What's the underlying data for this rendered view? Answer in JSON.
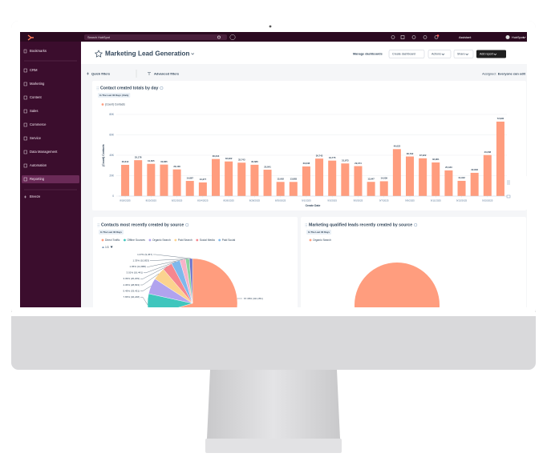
{
  "topbar": {
    "search": "Search HubSpot",
    "assistant": "Assistant",
    "account": "HubSpot"
  },
  "sidebar": {
    "bookmarks": "Bookmarks",
    "items": [
      "CRM",
      "Marketing",
      "Content",
      "Sales",
      "Commerce",
      "Service",
      "Data Management",
      "Automation",
      "Reporting"
    ],
    "active": 8,
    "breeze": "Breeze"
  },
  "header": {
    "title": "Marketing Lead Generation",
    "manage": "Manage dashboards",
    "buttons": [
      "Create dashboard",
      "Actions",
      "Share",
      "Add report"
    ]
  },
  "filters": {
    "quick": "Quick filters",
    "advanced": "Advanced filters",
    "assigned_label": "Assigned:",
    "assigned_value": "Everyone can edit"
  },
  "chart_data": [
    {
      "type": "bar",
      "title": "Contact created totals by day",
      "subtitle": "In The Last 30 Days | Daily",
      "xlabel": "Create Date",
      "ylabel": "(Count) Contacts",
      "categories": [
        "8/18/2025",
        null,
        "8/20/2025",
        null,
        "8/22/2025",
        null,
        "8/24/2025",
        null,
        "8/26/2025",
        null,
        "8/28/2025",
        null,
        "8/30/2025",
        null,
        "9/1/2025",
        null,
        "9/3/2025",
        null,
        "9/5/2025",
        null,
        "9/7/2025",
        null,
        "9/9/2025",
        null,
        "9/11/2025",
        null,
        "9/13/2025",
        null,
        "9/15/2025",
        null
      ],
      "series": [
        {
          "name": "(Count) Contacts",
          "color": "#ff9d7e",
          "values": [
            30612,
            35178,
            31605,
            30865,
            26136,
            14867,
            13377,
            36344,
            33932,
            32743,
            30686,
            25841,
            13902,
            13883,
            29038,
            36743,
            34775,
            31973,
            29374,
            13947,
            14539,
            46022,
            38792,
            37022,
            32961,
            25183,
            14942,
            22803,
            40208,
            72990
          ],
          "value_labels": [
            "30,612",
            "35,178",
            "31,605",
            "30,865",
            "26,136",
            "14,867",
            "13,377",
            "36,344",
            "33,932",
            "32,743",
            "30,686",
            "25,841",
            "13,902",
            "13,883",
            "29,038",
            "36,743",
            "34,775",
            "31,973",
            "29,374",
            "13,947",
            "14,539",
            "46,022",
            "38,792",
            "37,022",
            "32,961",
            "25,183",
            "14,942",
            "22,803",
            "40,208",
            "72,990"
          ]
        }
      ],
      "ylim": [
        0,
        80000
      ],
      "yticks": [
        0,
        {
          "value": 20000,
          "label": "20K"
        },
        {
          "value": 40000,
          "label": "40K"
        },
        {
          "value": 60000,
          "label": "60K"
        },
        {
          "value": 80000,
          "label": "80K"
        }
      ],
      "grid": true
    },
    {
      "type": "pie",
      "title": "Contacts most recently created by source",
      "subtitle": "In The Last 30 Days",
      "categories": [
        "Direct Traffic",
        "Offline Sources",
        "Organic Search",
        "Paid Search",
        "Social Media",
        "Paid Social",
        null,
        null,
        null
      ],
      "values": [
        67.38,
        7.65,
        5.49,
        4.36,
        3.39,
        3.01,
        1.95,
        1.33,
        1.07
      ],
      "value_labels": [
        "67.38% (421,351)",
        "7.65% (46,248)",
        "5.49% (33,431)",
        "4.36% (28,833)",
        "3.39% (20,209)",
        "3.01% (16,441)",
        "1.95% (14,888)",
        "1.33% (10,853)",
        "1.07% (9,457)"
      ],
      "colors": [
        "#ff9d7e",
        "#3fc6bd",
        "#b1a3ee",
        "#fbd38f",
        "#f5878f",
        "#7fb8ec",
        "#f7b3c9",
        "#8bd4a0",
        "#6d74c9"
      ],
      "legend_page": "1/3"
    },
    {
      "type": "pie",
      "title": "Marketing qualified leads recently created by source",
      "subtitle": "In The Last 30 Days",
      "categories": [
        "Organic Search"
      ],
      "values": [
        100
      ],
      "colors": [
        "#ff9d7e"
      ]
    }
  ]
}
